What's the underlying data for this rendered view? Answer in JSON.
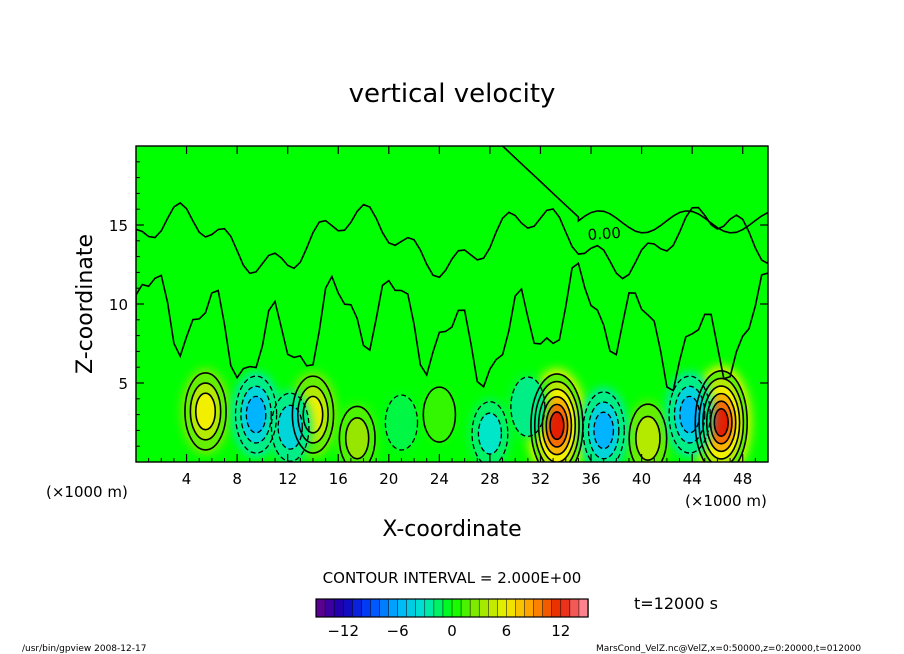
{
  "chart_data": {
    "type": "heatmap",
    "title": "vertical velocity",
    "xlabel": "X-coordinate",
    "ylabel": "Z-coordinate",
    "x_unit_left": "(×1000 m)",
    "x_unit_right": "(×1000 m)",
    "xlim": [
      0,
      50
    ],
    "ylim": [
      0,
      20
    ],
    "x_ticks": [
      4,
      8,
      12,
      16,
      20,
      24,
      28,
      32,
      36,
      40,
      44,
      48
    ],
    "y_ticks": [
      5,
      10,
      15
    ],
    "contour_label": "0.00",
    "contour_interval": "CONTOUR INTERVAL = 2.000E+00",
    "time_label": "t=12000 s",
    "colorbar": {
      "min": -15,
      "max": 15,
      "ticks": [
        -12,
        -6,
        0,
        6,
        12
      ],
      "tick_labels": [
        "−12",
        "−6",
        "0",
        "6",
        "12"
      ]
    },
    "features": [
      {
        "x": 5.5,
        "z": 3.2,
        "value": 6
      },
      {
        "x": 14.0,
        "z": 3.0,
        "value": 6
      },
      {
        "x": 33.3,
        "z": 2.3,
        "value": 12
      },
      {
        "x": 46.3,
        "z": 2.5,
        "value": 12
      },
      {
        "x": 40.5,
        "z": 1.5,
        "value": 4
      },
      {
        "x": 17.5,
        "z": 1.5,
        "value": 3
      },
      {
        "x": 9.5,
        "z": 3.0,
        "value": -6
      },
      {
        "x": 37.0,
        "z": 2.0,
        "value": -6
      },
      {
        "x": 43.8,
        "z": 3.0,
        "value": -6
      },
      {
        "x": 12.2,
        "z": 2.2,
        "value": -4
      },
      {
        "x": 28.0,
        "z": 1.8,
        "value": -3
      },
      {
        "x": 31.0,
        "z": 3.5,
        "value": -2
      },
      {
        "x": 21.0,
        "z": 2.5,
        "value": -1
      },
      {
        "x": 24.0,
        "z": 3.0,
        "value": 1
      }
    ],
    "colors": {
      "background_field": "#00ff00",
      "contour": "#000000"
    }
  },
  "footer": {
    "left": "/usr/bin/gpview   2008-12-17",
    "right": "MarsCond_VelZ.nc@VelZ,x=0:50000,z=0:20000,t=012000"
  }
}
